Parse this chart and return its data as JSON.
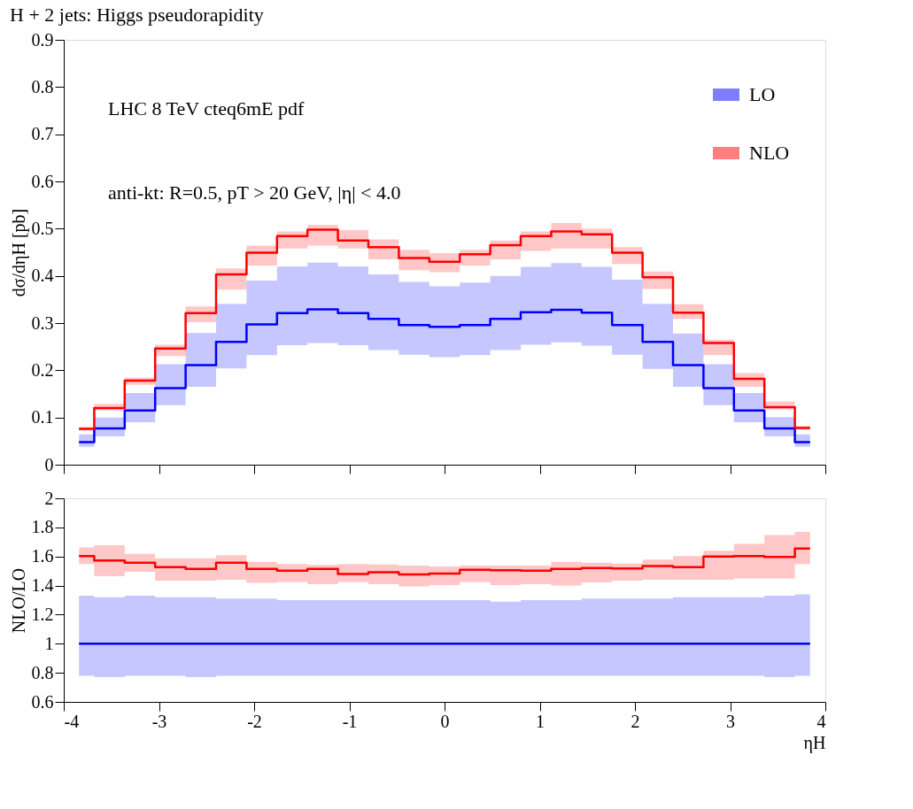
{
  "chart_data": [
    {
      "type": "step",
      "title": "H + 2 jets: Higgs pseudorapidity",
      "ylabel": "dσ/dηH [pb]",
      "annotations": [
        "LHC 8 TeV  cteq6mE pdf",
        "anti-kt: R=0.5, pT > 20 GeV, |η| < 4.0"
      ],
      "x": [
        -3.84,
        -3.52,
        -3.2,
        -2.88,
        -2.56,
        -2.24,
        -1.92,
        -1.6,
        -1.28,
        -0.96,
        -0.64,
        -0.32,
        0,
        0.32,
        0.64,
        0.96,
        1.28,
        1.6,
        1.92,
        2.24,
        2.56,
        2.88,
        3.2,
        3.52,
        3.84
      ],
      "xlim": [
        -4,
        4
      ],
      "xticks": [
        -4,
        -3,
        -2,
        -1,
        0,
        1,
        2,
        3,
        4
      ],
      "ylim": [
        0,
        0.9
      ],
      "yticks": [
        0,
        0.1,
        0.2,
        0.3,
        0.4,
        0.5,
        0.6,
        0.7,
        0.8,
        0.9
      ],
      "tick_labels": "y",
      "grid": false,
      "legend": "top right",
      "line_style": "solid",
      "marker": "none",
      "series": [
        {
          "name": "LO",
          "color": "#0000ff",
          "values": [
            0.048,
            0.077,
            0.115,
            0.162,
            0.211,
            0.26,
            0.297,
            0.321,
            0.329,
            0.321,
            0.309,
            0.296,
            0.292,
            0.296,
            0.309,
            0.323,
            0.328,
            0.322,
            0.296,
            0.26,
            0.211,
            0.162,
            0.115,
            0.077,
            0.048
          ],
          "lower": [
            0.038,
            0.06,
            0.09,
            0.126,
            0.165,
            0.204,
            0.232,
            0.253,
            0.258,
            0.253,
            0.243,
            0.233,
            0.228,
            0.232,
            0.243,
            0.254,
            0.259,
            0.252,
            0.233,
            0.203,
            0.165,
            0.126,
            0.09,
            0.06,
            0.038
          ],
          "upper": [
            0.064,
            0.1,
            0.152,
            0.213,
            0.279,
            0.341,
            0.39,
            0.42,
            0.428,
            0.42,
            0.403,
            0.387,
            0.378,
            0.386,
            0.4,
            0.419,
            0.427,
            0.419,
            0.392,
            0.341,
            0.278,
            0.213,
            0.152,
            0.101,
            0.064
          ]
        },
        {
          "name": "NLO",
          "color": "#ff0000",
          "values": [
            0.076,
            0.12,
            0.178,
            0.246,
            0.321,
            0.403,
            0.449,
            0.484,
            0.498,
            0.475,
            0.461,
            0.438,
            0.43,
            0.446,
            0.465,
            0.484,
            0.494,
            0.488,
            0.449,
            0.397,
            0.322,
            0.258,
            0.182,
            0.122,
            0.078
          ],
          "lower": [
            0.072,
            0.115,
            0.169,
            0.23,
            0.302,
            0.371,
            0.422,
            0.458,
            0.464,
            0.458,
            0.435,
            0.412,
            0.408,
            0.422,
            0.435,
            0.453,
            0.458,
            0.458,
            0.425,
            0.372,
            0.309,
            0.232,
            0.165,
            0.117,
            0.074
          ],
          "upper": [
            0.08,
            0.129,
            0.184,
            0.254,
            0.335,
            0.416,
            0.464,
            0.494,
            0.508,
            0.497,
            0.477,
            0.455,
            0.448,
            0.455,
            0.475,
            0.494,
            0.512,
            0.5,
            0.461,
            0.409,
            0.34,
            0.265,
            0.194,
            0.134,
            0.082
          ]
        }
      ]
    },
    {
      "type": "step",
      "ylabel": "NLO/LO",
      "xlabel": "ηH",
      "x": [
        -3.84,
        -3.52,
        -3.2,
        -2.88,
        -2.56,
        -2.24,
        -1.92,
        -1.6,
        -1.28,
        -0.96,
        -0.64,
        -0.32,
        0,
        0.32,
        0.64,
        0.96,
        1.28,
        1.6,
        1.92,
        2.24,
        2.56,
        2.88,
        3.2,
        3.52,
        3.84
      ],
      "xlim": [
        -4,
        4
      ],
      "xticks": [
        -4,
        -3,
        -2,
        -1,
        0,
        1,
        2,
        3,
        4
      ],
      "ylim": [
        0.6,
        2
      ],
      "yticks": [
        0.6,
        0.8,
        1,
        1.2,
        1.4,
        1.6,
        1.8,
        2
      ],
      "grid": false,
      "legend": false,
      "line_style": "solid",
      "marker": "none",
      "series": [
        {
          "color": "#0000ff",
          "values": [
            1,
            1,
            1,
            1,
            1,
            1,
            1,
            1,
            1,
            1,
            1,
            1,
            1,
            1,
            1,
            1,
            1,
            1,
            1,
            1,
            1,
            1,
            1,
            1,
            1
          ],
          "lower": [
            0.78,
            0.77,
            0.78,
            0.78,
            0.77,
            0.78,
            0.78,
            0.78,
            0.78,
            0.78,
            0.78,
            0.78,
            0.78,
            0.78,
            0.78,
            0.78,
            0.78,
            0.78,
            0.78,
            0.78,
            0.78,
            0.78,
            0.78,
            0.77,
            0.78
          ],
          "upper": [
            1.33,
            1.32,
            1.33,
            1.32,
            1.32,
            1.31,
            1.31,
            1.3,
            1.3,
            1.3,
            1.3,
            1.3,
            1.3,
            1.3,
            1.29,
            1.3,
            1.3,
            1.31,
            1.31,
            1.31,
            1.32,
            1.32,
            1.32,
            1.33,
            1.34
          ]
        },
        {
          "color": "#ff0000",
          "values": [
            1.603,
            1.572,
            1.557,
            1.526,
            1.514,
            1.557,
            1.514,
            1.502,
            1.514,
            1.48,
            1.492,
            1.477,
            1.483,
            1.508,
            1.505,
            1.502,
            1.514,
            1.52,
            1.517,
            1.535,
            1.526,
            1.6,
            1.603,
            1.597,
            1.655
          ],
          "lower": [
            1.548,
            1.465,
            1.495,
            1.434,
            1.434,
            1.44,
            1.418,
            1.425,
            1.409,
            1.425,
            1.409,
            1.394,
            1.403,
            1.425,
            1.403,
            1.409,
            1.4,
            1.422,
            1.434,
            1.44,
            1.44,
            1.44,
            1.449,
            1.449,
            1.548
          ],
          "upper": [
            1.662,
            1.677,
            1.618,
            1.588,
            1.588,
            1.609,
            1.563,
            1.548,
            1.542,
            1.548,
            1.545,
            1.538,
            1.532,
            1.538,
            1.538,
            1.538,
            1.563,
            1.557,
            1.551,
            1.578,
            1.603,
            1.64,
            1.686,
            1.748,
            1.769
          ]
        }
      ]
    }
  ]
}
